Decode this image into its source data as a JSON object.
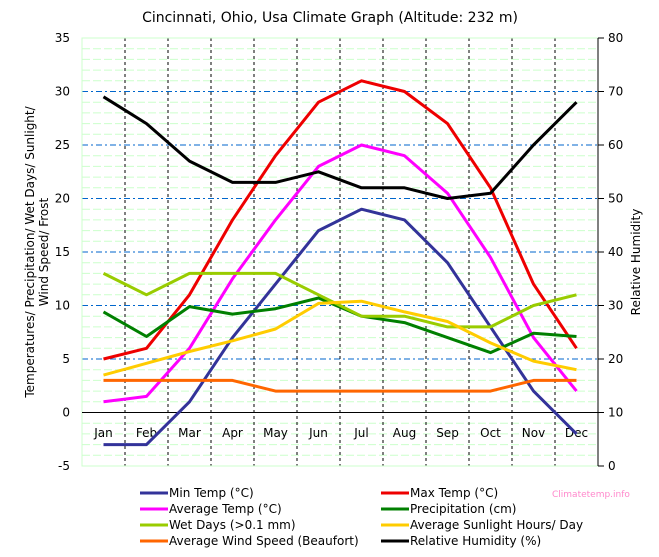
{
  "chart_data": {
    "type": "line",
    "title": "Cincinnati, Ohio, Usa Climate Graph (Altitude: 232 m)",
    "xlabel": "",
    "ylabel": "Temperatures/ Precipitation/ Wet Days/ Sunlight/ Wind Speed/ Frost",
    "ylabel_lines": [
      "Temperatures/ Precipitation/ Wet Days/ Sunlight/",
      "Wind Speed/ Frost"
    ],
    "y2label": "Relative Humidity",
    "ylim": [
      -5,
      35
    ],
    "y2lim": [
      0,
      80
    ],
    "yticks": [
      -5,
      0,
      5,
      10,
      15,
      20,
      25,
      30,
      35
    ],
    "y2ticks": [
      0,
      10,
      20,
      30,
      40,
      50,
      60,
      70,
      80
    ],
    "categories": [
      "Jan",
      "Feb",
      "Mar",
      "Apr",
      "May",
      "Jun",
      "Jul",
      "Aug",
      "Sep",
      "Oct",
      "Nov",
      "Dec"
    ],
    "grid": true,
    "legend_position": "bottom",
    "watermark": "Climatetemp.info",
    "series": [
      {
        "name": "Min Temp (°C)",
        "color": "#333399",
        "axis": "left",
        "values": [
          -3,
          -3,
          1,
          7,
          12,
          17,
          19,
          18,
          14,
          8,
          2,
          -2
        ]
      },
      {
        "name": "Max Temp (°C)",
        "color": "#ee0000",
        "axis": "left",
        "values": [
          5,
          6,
          11,
          18,
          24,
          29,
          31,
          30,
          27,
          21,
          12,
          6
        ]
      },
      {
        "name": "Average Temp (°C)",
        "color": "#ff00ff",
        "axis": "left",
        "values": [
          1,
          1.5,
          6,
          12.5,
          18,
          23,
          25,
          24,
          20.5,
          14.5,
          7,
          2
        ]
      },
      {
        "name": "Precipitation (cm)",
        "color": "#008000",
        "axis": "left",
        "values": [
          9.4,
          7.1,
          9.9,
          9.2,
          9.7,
          10.7,
          9,
          8.4,
          7,
          5.6,
          7.4,
          7.1
        ]
      },
      {
        "name": "Wet Days (>0.1 mm)",
        "color": "#99cc00",
        "axis": "left",
        "values": [
          13,
          11,
          13,
          13,
          13,
          11,
          9,
          9,
          8,
          8,
          10,
          11
        ]
      },
      {
        "name": "Average Sunlight Hours/ Day",
        "color": "#ffcc00",
        "axis": "left",
        "values": [
          3.5,
          4.6,
          5.7,
          6.7,
          7.8,
          10.2,
          10.4,
          9.4,
          8.5,
          6.5,
          4.8,
          4
        ]
      },
      {
        "name": "Average Wind Speed (Beaufort)",
        "color": "#ff6600",
        "axis": "left",
        "values": [
          3,
          3,
          3,
          3,
          2,
          2,
          2,
          2,
          2,
          2,
          3,
          3
        ]
      },
      {
        "name": "Relative Humidity (%)",
        "color": "#000000",
        "axis": "right",
        "values": [
          69,
          64,
          57,
          53,
          53,
          55,
          52,
          52,
          50,
          51,
          60,
          68
        ]
      }
    ]
  }
}
